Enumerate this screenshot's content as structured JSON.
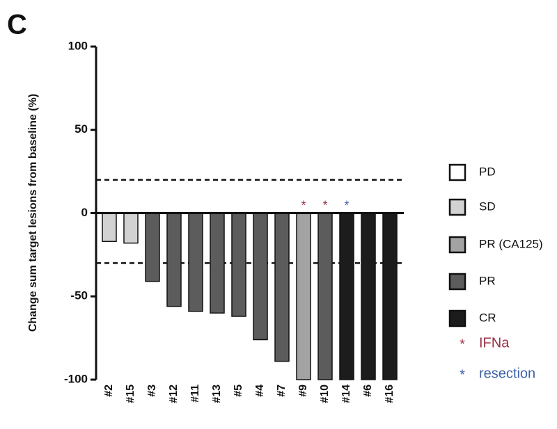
{
  "chart_data": {
    "type": "waterfall",
    "panel_label": "C",
    "y_label": "Change sum target lesions from baseline (%)",
    "categories": [
      "#2",
      "#15",
      "#3",
      "#12",
      "#11",
      "#13",
      "#5",
      "#4",
      "#7",
      "#9",
      "#10",
      "#14",
      "#6",
      "#16"
    ],
    "values": [
      -17,
      -18,
      -41,
      -56,
      -59,
      -60,
      -62,
      -76,
      -89,
      -100,
      -100,
      -100,
      -100,
      -100
    ],
    "response": [
      "SD",
      "SD",
      "PR",
      "PR",
      "PR",
      "PR",
      "PR",
      "PR",
      "PR",
      "PR (CA125)",
      "PR",
      "CR",
      "CR",
      "CR"
    ],
    "ylim": [
      -100,
      100
    ],
    "yticks": [
      -100,
      -50,
      0,
      50,
      100
    ],
    "reference_lines": [
      20,
      -30
    ],
    "legend": [
      {
        "name": "PD",
        "color": "#ffffff"
      },
      {
        "name": "SD",
        "color": "#d2d2d2"
      },
      {
        "name": "PR (CA125)",
        "color": "#a3a3a3"
      },
      {
        "name": "PR",
        "color": "#5c5c5c"
      },
      {
        "name": "CR",
        "color": "#1c1c1c"
      }
    ],
    "markers": [
      {
        "name": "IFNa",
        "symbol": "*",
        "color": "#9b3043",
        "categories": [
          "#9",
          "#10"
        ]
      },
      {
        "name": "resection",
        "symbol": "*",
        "color": "#3d62a8",
        "categories": [
          "#14"
        ]
      }
    ]
  }
}
